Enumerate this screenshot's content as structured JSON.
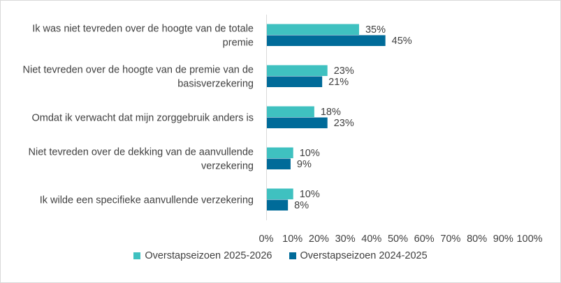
{
  "chart_data": {
    "type": "bar",
    "orientation": "horizontal",
    "categories": [
      [
        "Ik was niet tevreden over de hoogte van de totale",
        "premie"
      ],
      [
        "Niet tevreden over de hoogte van de premie van de",
        "basisverzekering"
      ],
      [
        "Omdat ik verwacht dat mijn zorggebruik anders is"
      ],
      [
        "Niet tevreden over de dekking van de aanvullende",
        "verzekering"
      ],
      [
        "Ik wilde een specifieke aanvullende verzekering"
      ]
    ],
    "series": [
      {
        "name": "Overstapseizoen 2025-2026",
        "color": "#3fc1c0",
        "values": [
          35,
          23,
          18,
          10,
          10
        ]
      },
      {
        "name": "Overstapseizoen 2024-2025",
        "color": "#006b99",
        "values": [
          45,
          21,
          23,
          9,
          8
        ]
      }
    ],
    "xlim": [
      0,
      100
    ],
    "xticks": [
      0,
      10,
      20,
      30,
      40,
      50,
      60,
      70,
      80,
      90,
      100
    ],
    "value_suffix": "%",
    "legend_position": "bottom",
    "grid": false
  }
}
